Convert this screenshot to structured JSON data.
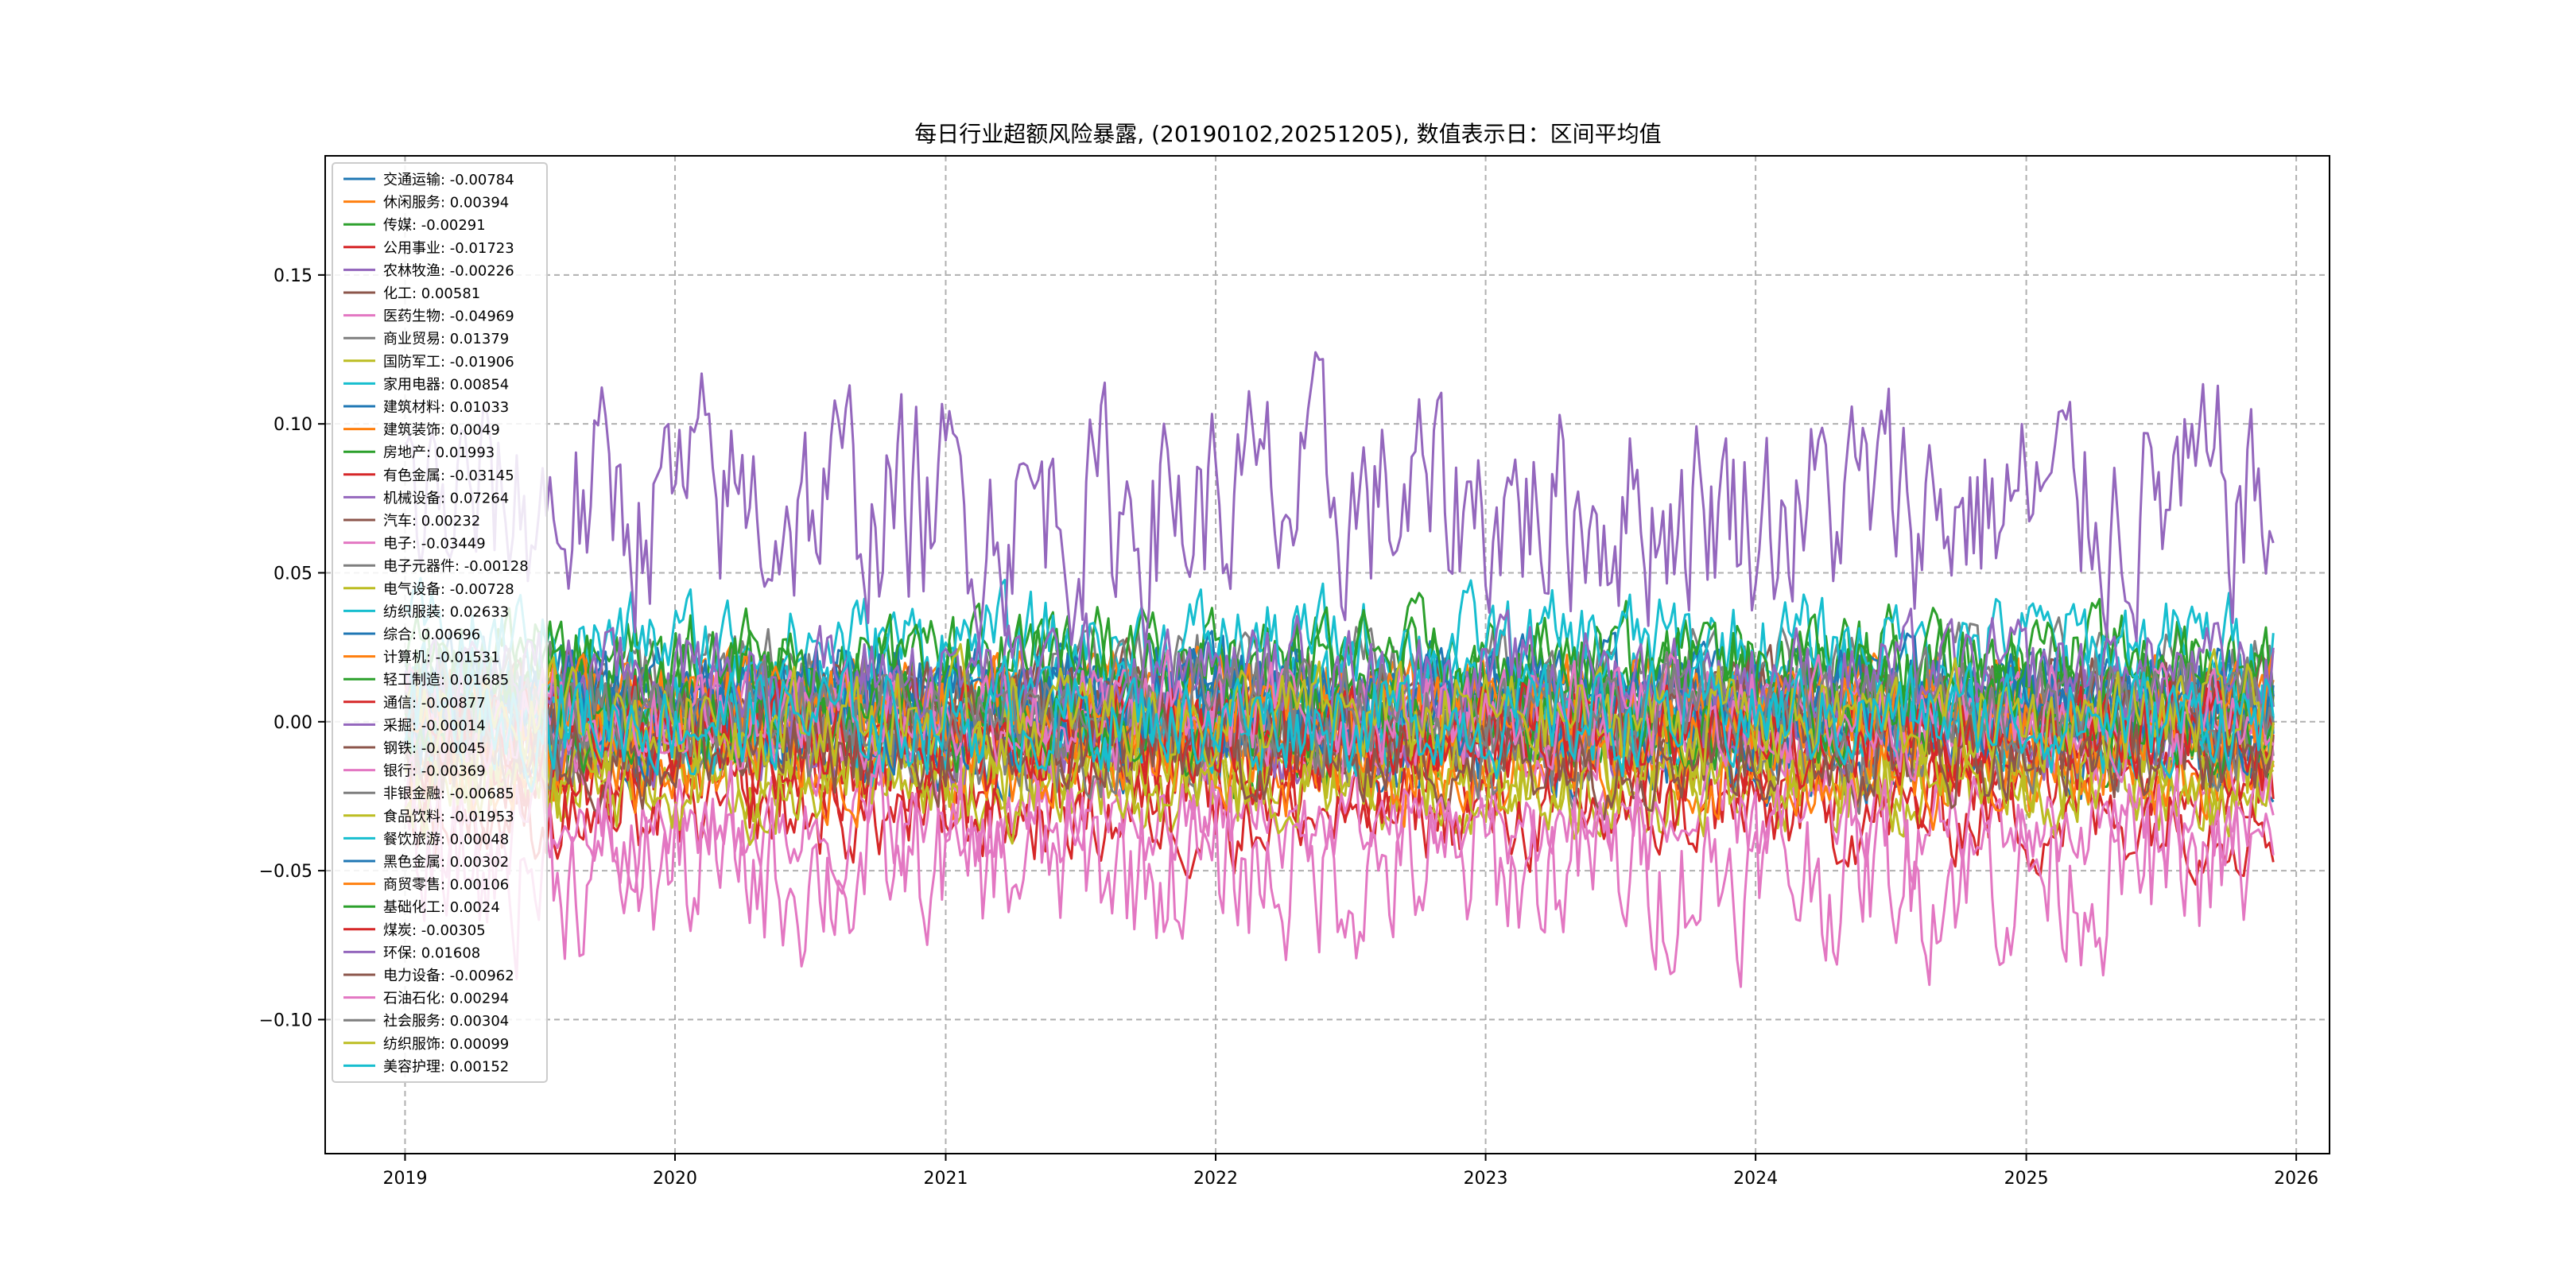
{
  "chart_data": {
    "type": "line",
    "title": "每日行业超额风险暴露, (20190102,20251205),  数值表示日：区间平均值",
    "xlabel": "",
    "ylabel": "",
    "x_range": [
      "2018-09-15",
      "2026-02-15"
    ],
    "ylim": [
      -0.145,
      0.19
    ],
    "x_ticks": [
      "2019",
      "2020",
      "2021",
      "2022",
      "2023",
      "2024",
      "2025",
      "2026"
    ],
    "y_ticks": [
      "−0.10",
      "−0.05",
      "0.00",
      "0.05",
      "0.10",
      "0.15"
    ],
    "y_tick_values": [
      -0.1,
      -0.05,
      0.0,
      0.05,
      0.1,
      0.15
    ],
    "grid": true,
    "legend_position": "upper-left",
    "series": [
      {
        "name": "交通运输: -0.00784",
        "color": "#1f77b4"
      },
      {
        "name": "休闲服务: 0.00394",
        "color": "#ff7f0e"
      },
      {
        "name": "传媒: -0.00291",
        "color": "#2ca02c"
      },
      {
        "name": "公用事业: -0.01723",
        "color": "#d62728"
      },
      {
        "name": "农林牧渔: -0.00226",
        "color": "#9467bd"
      },
      {
        "name": "化工: 0.00581",
        "color": "#8c564b"
      },
      {
        "name": "医药生物: -0.04969",
        "color": "#e377c2"
      },
      {
        "name": "商业贸易: 0.01379",
        "color": "#7f7f7f"
      },
      {
        "name": "国防军工: -0.01906",
        "color": "#bcbd22"
      },
      {
        "name": "家用电器: 0.00854",
        "color": "#17becf"
      },
      {
        "name": "建筑材料: 0.01033",
        "color": "#1f77b4"
      },
      {
        "name": "建筑装饰: 0.0049",
        "color": "#ff7f0e"
      },
      {
        "name": "房地产: 0.01993",
        "color": "#2ca02c"
      },
      {
        "name": "有色金属: -0.03145",
        "color": "#d62728"
      },
      {
        "name": "机械设备: 0.07264",
        "color": "#9467bd"
      },
      {
        "name": "汽车: 0.00232",
        "color": "#8c564b"
      },
      {
        "name": "电子: -0.03449",
        "color": "#e377c2"
      },
      {
        "name": "电子元器件: -0.00128",
        "color": "#7f7f7f"
      },
      {
        "name": "电气设备: -0.00728",
        "color": "#bcbd22"
      },
      {
        "name": "纺织服装: 0.02633",
        "color": "#17becf"
      },
      {
        "name": "综合: 0.00696",
        "color": "#1f77b4"
      },
      {
        "name": "计算机: -0.01531",
        "color": "#ff7f0e"
      },
      {
        "name": "轻工制造: 0.01685",
        "color": "#2ca02c"
      },
      {
        "name": "通信: -0.00877",
        "color": "#d62728"
      },
      {
        "name": "采掘: -0.00014",
        "color": "#9467bd"
      },
      {
        "name": "钢铁: -0.00045",
        "color": "#8c564b"
      },
      {
        "name": "银行: -0.00369",
        "color": "#e377c2"
      },
      {
        "name": "非银金融: -0.00685",
        "color": "#7f7f7f"
      },
      {
        "name": "食品饮料: -0.01953",
        "color": "#bcbd22"
      },
      {
        "name": "餐饮旅游: 0.00048",
        "color": "#17becf"
      },
      {
        "name": "黑色金属: 0.00302",
        "color": "#1f77b4"
      },
      {
        "name": "商贸零售: 0.00106",
        "color": "#ff7f0e"
      },
      {
        "name": "基础化工: 0.0024",
        "color": "#2ca02c"
      },
      {
        "name": "煤炭: -0.00305",
        "color": "#d62728"
      },
      {
        "name": "环保: 0.01608",
        "color": "#9467bd"
      },
      {
        "name": "电力设备: -0.00962",
        "color": "#8c564b"
      },
      {
        "name": "石油石化: 0.00294",
        "color": "#e377c2"
      },
      {
        "name": "社会服务: 0.00304",
        "color": "#7f7f7f"
      },
      {
        "name": "纺织服饰: 0.00099",
        "color": "#bcbd22"
      },
      {
        "name": "美容护理: 0.00152",
        "color": "#17becf"
      }
    ]
  }
}
